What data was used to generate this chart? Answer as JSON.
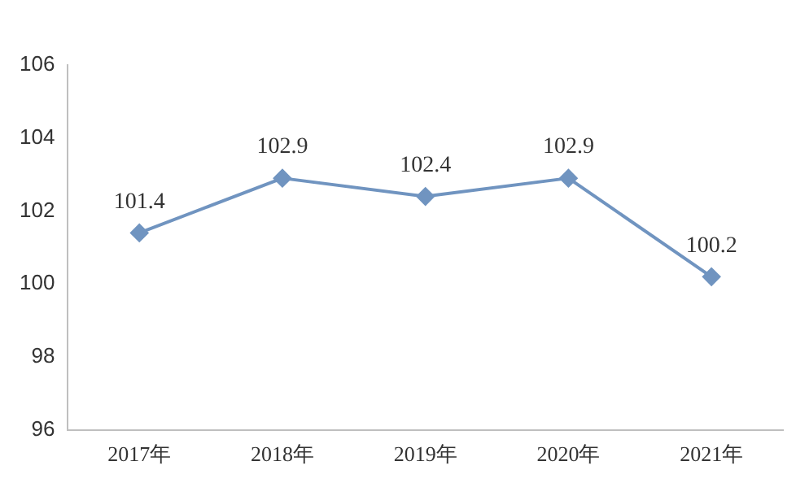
{
  "chart_data": {
    "type": "line",
    "categories": [
      "2017年",
      "2018年",
      "2019年",
      "2020年",
      "2021年"
    ],
    "series": [
      {
        "color": "#7094c0",
        "values": [
          101.4,
          102.9,
          102.4,
          102.9,
          100.2
        ]
      }
    ],
    "ylim": [
      96,
      106
    ],
    "yticks": [
      96,
      98,
      100,
      102,
      104,
      106
    ],
    "grid": false,
    "legend": false,
    "marker": "diamond",
    "line_style": "solid",
    "data_labels": true
  }
}
